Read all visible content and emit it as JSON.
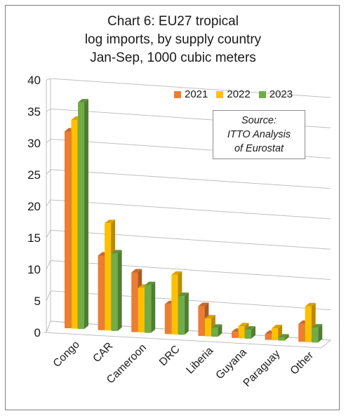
{
  "title_lines": [
    "Chart 6: EU27 tropical",
    "log imports, by supply country",
    "Jan-Sep, 1000 cubic meters"
  ],
  "source_lines": [
    "Source:",
    "ITTO  Analysis",
    "of Eurostat"
  ],
  "colors": {
    "2021": "#ED7D31",
    "2022": "#FFC000",
    "2023": "#70AD47"
  },
  "chart_data": {
    "type": "bar",
    "title": "Chart 6: EU27 tropical log imports, by supply country Jan-Sep, 1000 cubic meters",
    "categories": [
      "Congo",
      "CAR",
      "Cameroon",
      "DRC",
      "Liberia",
      "Guyana",
      "Paraguay",
      "Other"
    ],
    "series": [
      {
        "name": "2021",
        "values": [
          33,
          12.5,
          10,
          5,
          5,
          1,
          1,
          3
        ]
      },
      {
        "name": "2022",
        "values": [
          35,
          18,
          7.5,
          10,
          3,
          2,
          2,
          6
        ]
      },
      {
        "name": "2023",
        "values": [
          38,
          13,
          8,
          6.5,
          1.5,
          1.5,
          0.5,
          2.5
        ]
      }
    ],
    "yticks": [
      0,
      5,
      10,
      15,
      20,
      25,
      30,
      35,
      40
    ],
    "ylim": [
      0,
      40
    ],
    "xlabel": "",
    "ylabel": "",
    "grid": true,
    "legend_position": "top-right"
  }
}
